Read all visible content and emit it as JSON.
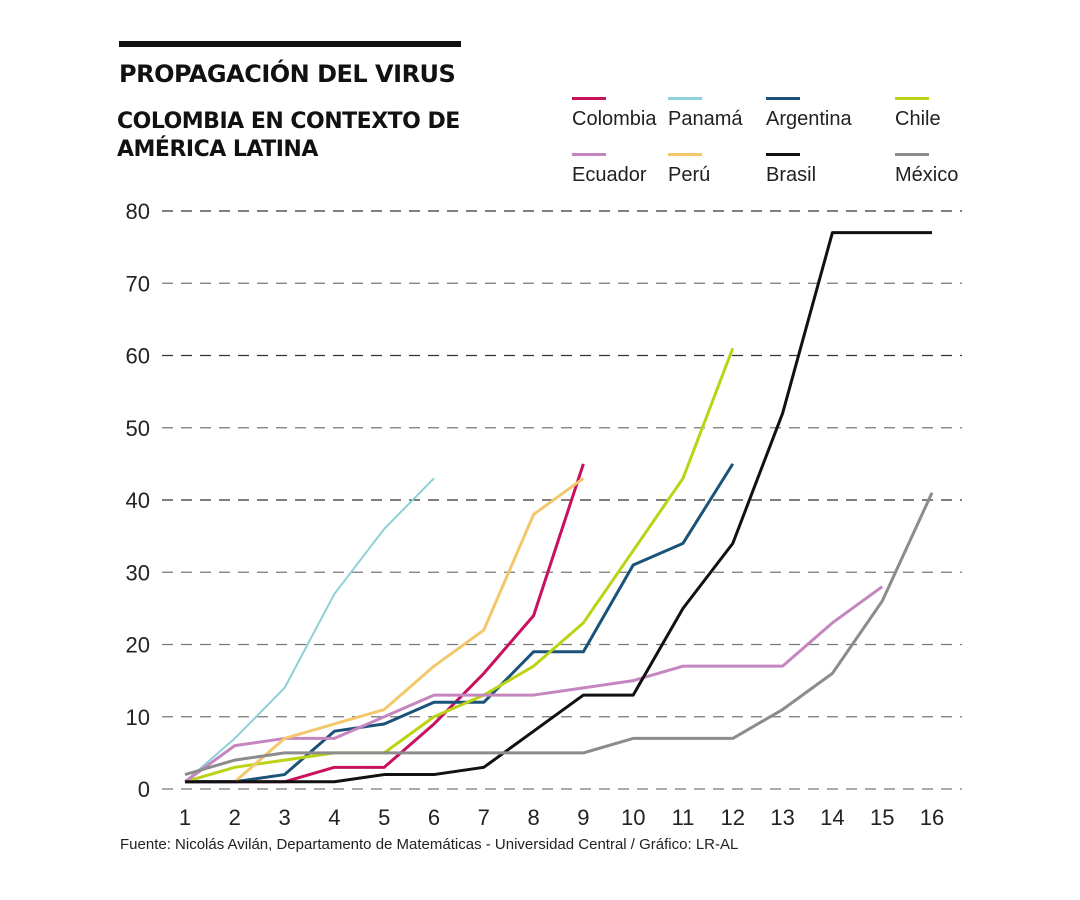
{
  "header": {
    "title": "PROPAGACIÓN DEL VIRUS",
    "subtitle": "COLOMBIA EN CONTEXTO DE AMÉRICA LATINA"
  },
  "footer": {
    "source": "Fuente: Nicolás Avilán, Departamento de Matemáticas - Universidad Central / Gráfico: LR-AL"
  },
  "chart_data": {
    "type": "line",
    "title": "PROPAGACIÓN DEL VIRUS",
    "subtitle": "COLOMBIA EN CONTEXTO DE AMÉRICA LATINA",
    "xlabel": "",
    "ylabel": "",
    "xlim": [
      1,
      16
    ],
    "ylim": [
      0,
      80
    ],
    "x_ticks": [
      1,
      2,
      3,
      4,
      5,
      6,
      7,
      8,
      9,
      10,
      11,
      12,
      13,
      14,
      15,
      16
    ],
    "y_ticks": [
      0,
      10,
      20,
      30,
      40,
      50,
      60,
      70,
      80
    ],
    "grid": "horizontal dashed",
    "legend_position": "top-right",
    "series": [
      {
        "name": "Colombia",
        "color": "#c8115f",
        "x": [
          1,
          2,
          3,
          4,
          5,
          6,
          7,
          8,
          9
        ],
        "values": [
          1,
          1,
          1,
          3,
          3,
          9,
          16,
          24,
          45
        ]
      },
      {
        "name": "Panamá",
        "color": "#8fcfd8",
        "x": [
          1,
          2,
          3,
          4,
          5,
          6
        ],
        "values": [
          1,
          7,
          14,
          27,
          36,
          43
        ]
      },
      {
        "name": "Argentina",
        "color": "#1b5279",
        "x": [
          1,
          2,
          3,
          4,
          5,
          6,
          7,
          8,
          9,
          10,
          11,
          12
        ],
        "values": [
          1,
          1,
          2,
          8,
          9,
          12,
          12,
          19,
          19,
          31,
          34,
          45
        ]
      },
      {
        "name": "Chile",
        "color": "#bcd315",
        "x": [
          1,
          2,
          3,
          4,
          5,
          6,
          7,
          8,
          9,
          10,
          11,
          12
        ],
        "values": [
          1,
          3,
          4,
          5,
          5,
          10,
          13,
          17,
          23,
          33,
          43,
          61
        ]
      },
      {
        "name": "Ecuador",
        "color": "#c586c0",
        "x": [
          1,
          2,
          3,
          4,
          5,
          6,
          7,
          8,
          9,
          10,
          11,
          12,
          13,
          14,
          15
        ],
        "values": [
          1,
          6,
          7,
          7,
          10,
          13,
          13,
          13,
          14,
          15,
          17,
          17,
          17,
          23,
          28
        ]
      },
      {
        "name": "Perú",
        "color": "#f3c86c",
        "x": [
          2,
          3,
          4,
          5,
          6,
          7,
          8,
          9
        ],
        "values": [
          1,
          7,
          9,
          11,
          17,
          22,
          38,
          43
        ]
      },
      {
        "name": "Brasil",
        "color": "#111111",
        "x": [
          1,
          2,
          3,
          4,
          5,
          6,
          7,
          8,
          9,
          10,
          11,
          12,
          13,
          14,
          15,
          16
        ],
        "values": [
          1,
          1,
          1,
          1,
          2,
          2,
          3,
          8,
          13,
          13,
          25,
          34,
          52,
          77,
          77,
          77
        ]
      },
      {
        "name": "México",
        "color": "#8c8c8c",
        "x": [
          1,
          2,
          3,
          4,
          5,
          6,
          7,
          8,
          9,
          10,
          11,
          12,
          13,
          14,
          15,
          16
        ],
        "values": [
          2,
          4,
          5,
          5,
          5,
          5,
          5,
          5,
          5,
          7,
          7,
          7,
          11,
          16,
          26,
          41
        ]
      }
    ]
  }
}
